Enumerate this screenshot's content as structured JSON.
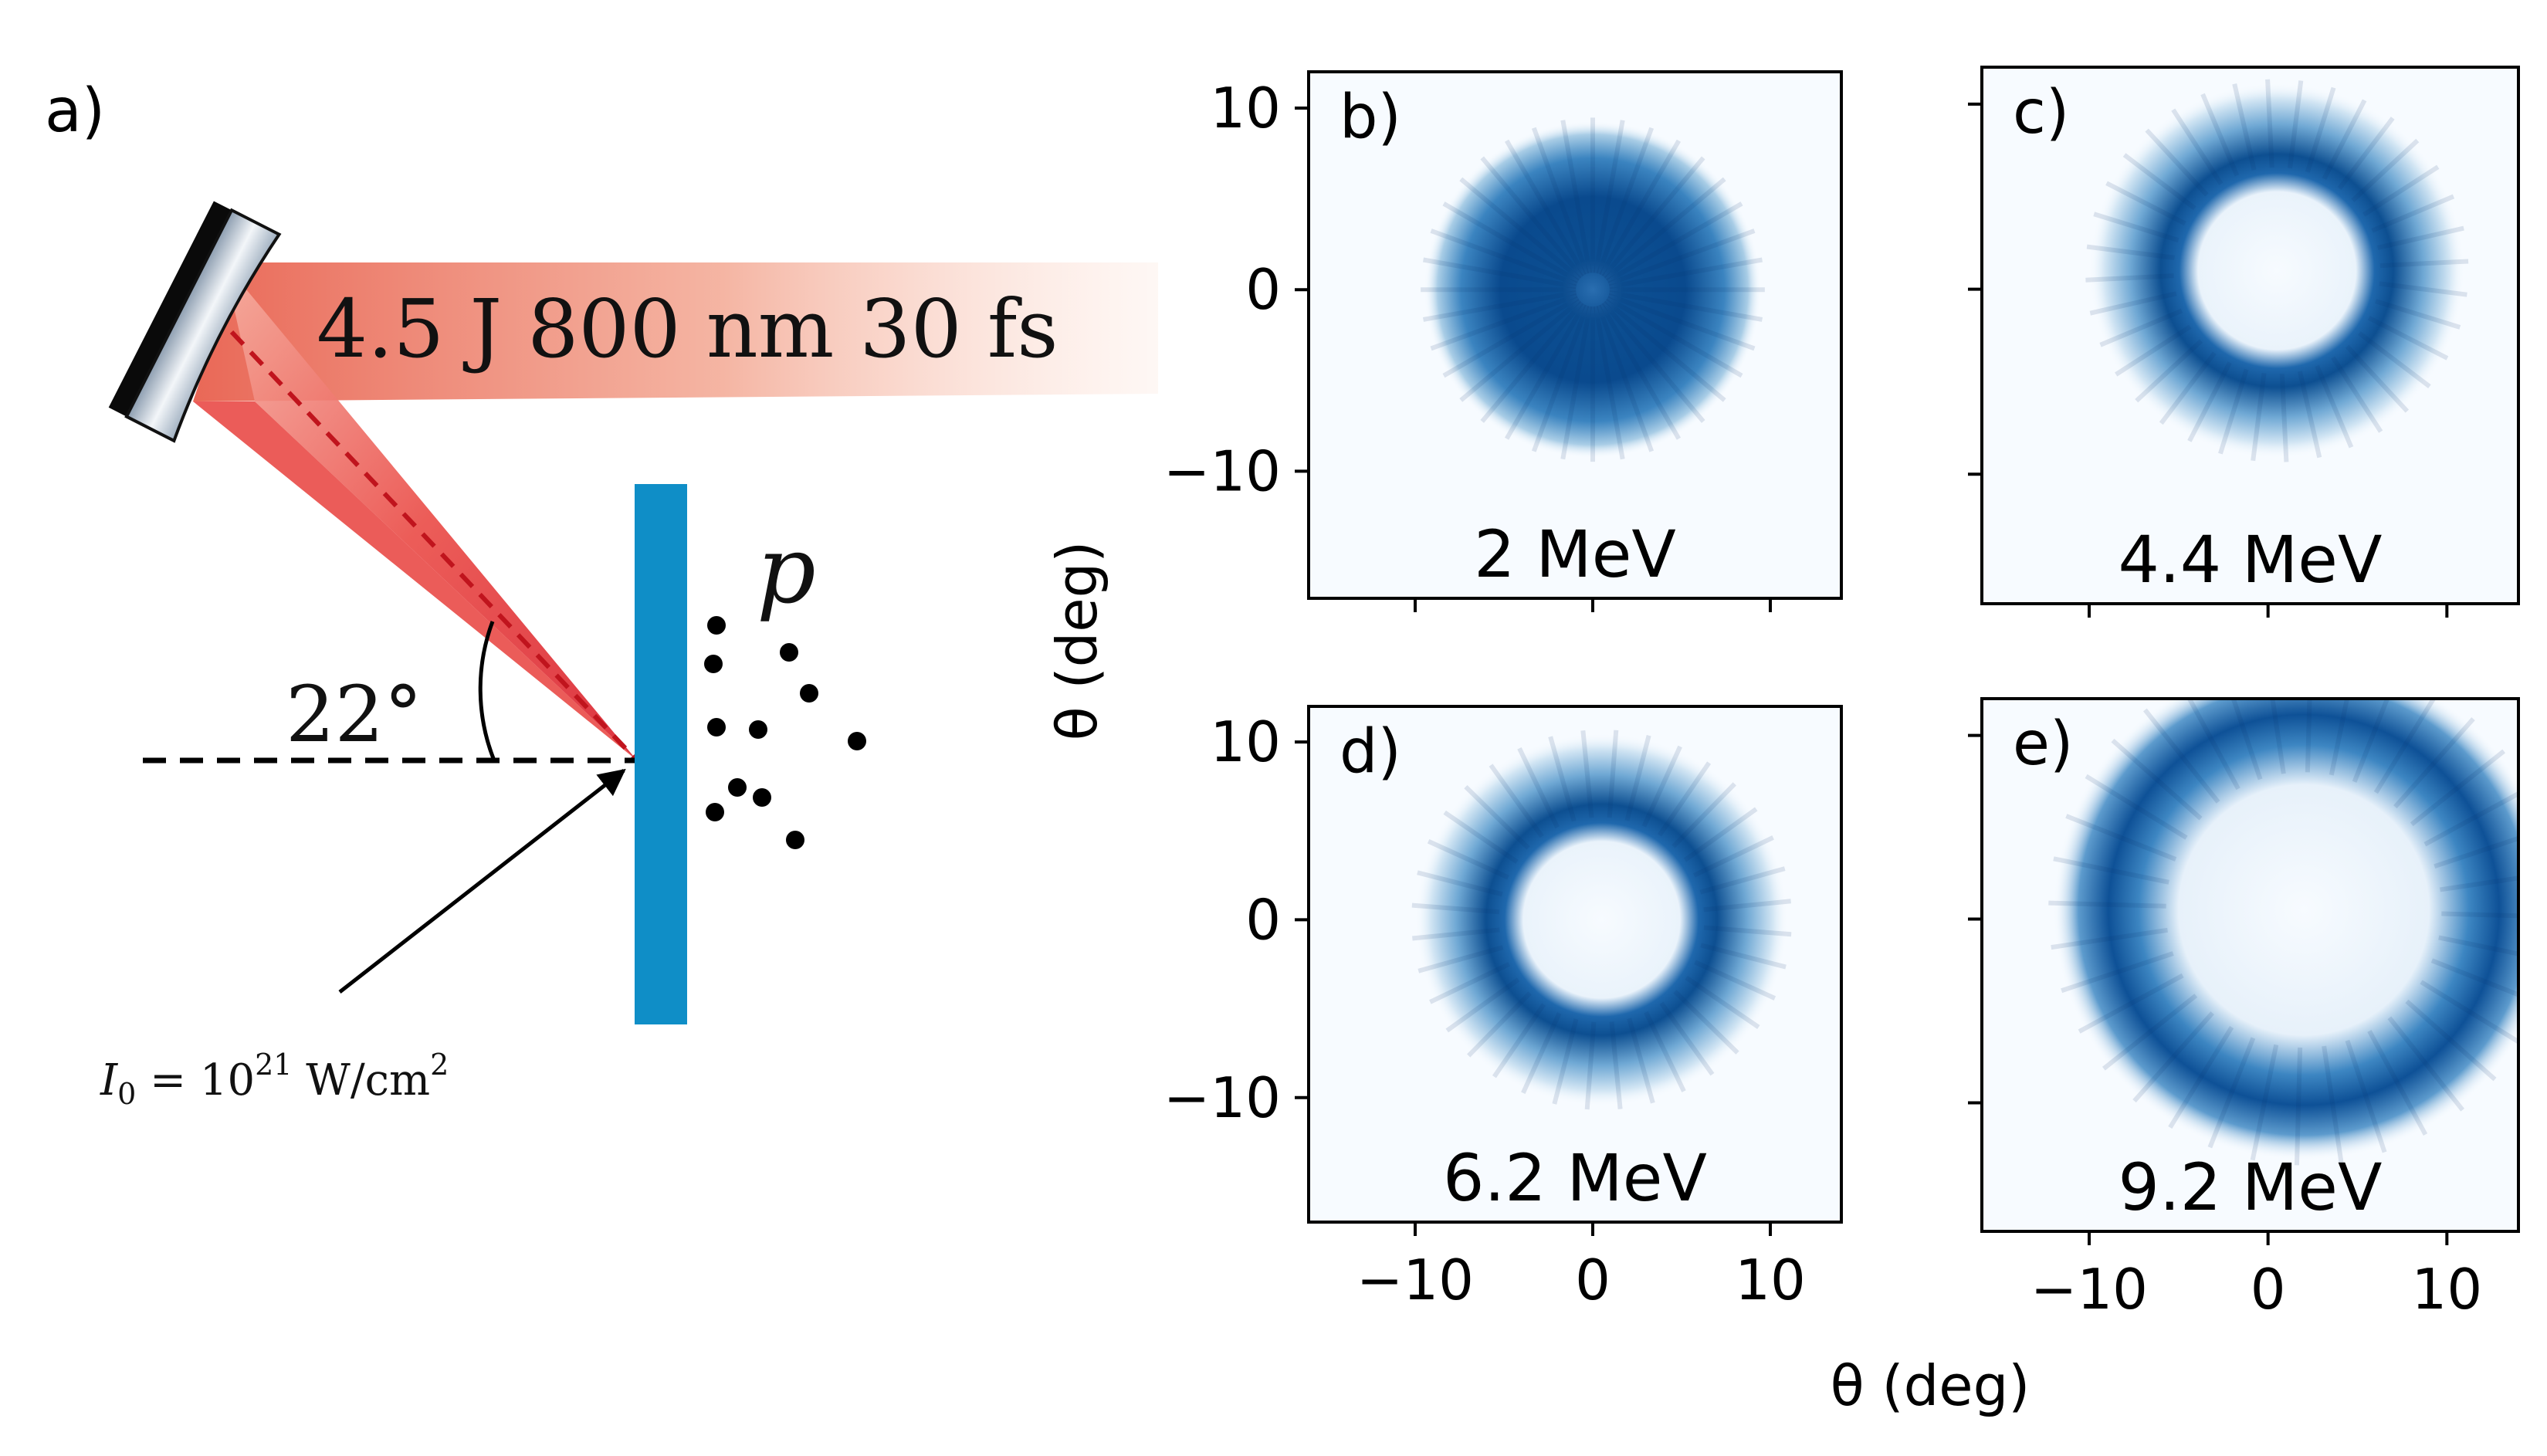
{
  "schematic": {
    "panel_label": "a)",
    "beam_label": "4.5 J  800 nm  30 fs",
    "angle_label": "22°",
    "particle_label": "p",
    "intensity_label": {
      "prefix": "I",
      "subscript": "0",
      "equals": " = 10",
      "exponent": "21",
      "unit": " W/cm",
      "unit_exponent": "2"
    }
  },
  "shared_axes": {
    "x_axis_label": "θ (deg)",
    "y_axis_label": "θ (deg)",
    "ticks": [
      "−10",
      "0",
      "10"
    ]
  },
  "chart_data": [
    {
      "type": "heatmap",
      "panel": "b)",
      "energy_label": "2 MeV",
      "xlim": [
        -16,
        14
      ],
      "ylim": [
        -17,
        12
      ],
      "colormap": "Blues",
      "pattern": "filled disk",
      "colors": {
        "ink": "#08306b",
        "mid": "#2171b5",
        "light": "#c6dbef",
        "bg": "#f7fbff"
      }
    },
    {
      "type": "heatmap",
      "panel": "c)",
      "energy_label": "4.4 MeV",
      "xlim": [
        -16,
        14
      ],
      "ylim": [
        -17,
        12
      ],
      "colormap": "Blues",
      "pattern": "ring"
    },
    {
      "type": "heatmap",
      "panel": "d)",
      "energy_label": "6.2 MeV",
      "xlim": [
        -16,
        14
      ],
      "ylim": [
        -17,
        12
      ],
      "colormap": "Blues",
      "pattern": "ring"
    },
    {
      "type": "heatmap",
      "panel": "e)",
      "energy_label": "9.2 MeV",
      "xlim": [
        -16,
        14
      ],
      "ylim": [
        -17,
        12
      ],
      "colormap": "Blues",
      "pattern": "wide ring"
    }
  ]
}
